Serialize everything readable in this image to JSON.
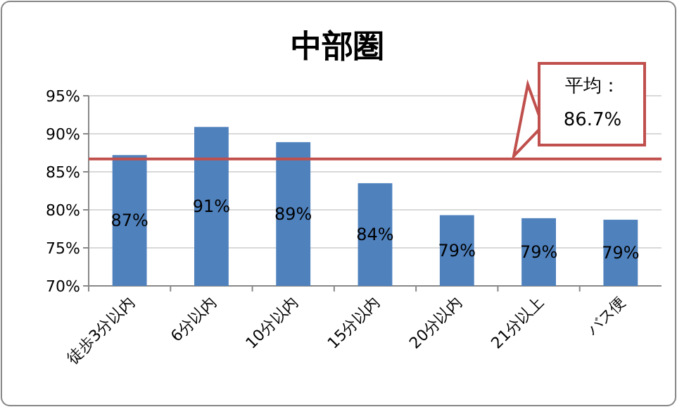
{
  "chart_data": {
    "type": "bar",
    "title": "中部圏",
    "categories": [
      "徒歩3分以内",
      "6分以内",
      "10分以内",
      "15分以内",
      "20分以内",
      "21分以上",
      "バス便"
    ],
    "values": [
      87.2,
      90.9,
      88.9,
      83.5,
      79.3,
      78.9,
      78.7
    ],
    "value_labels": [
      "87%",
      "91%",
      "89%",
      "84%",
      "79%",
      "79%",
      "79%"
    ],
    "color": "#4f81bd",
    "ylim": [
      70,
      95
    ],
    "yticks": [
      {
        "value": 70,
        "label": "70%"
      },
      {
        "value": 75,
        "label": "75%"
      },
      {
        "value": 80,
        "label": "80%"
      },
      {
        "value": 85,
        "label": "85%"
      },
      {
        "value": 90,
        "label": "90%"
      },
      {
        "value": 95,
        "label": "95%"
      }
    ],
    "grid": "y",
    "ref_lines": [
      {
        "axis": "y",
        "value": 86.7,
        "label": "平均：86.7%",
        "color": "#c0504d"
      }
    ]
  }
}
